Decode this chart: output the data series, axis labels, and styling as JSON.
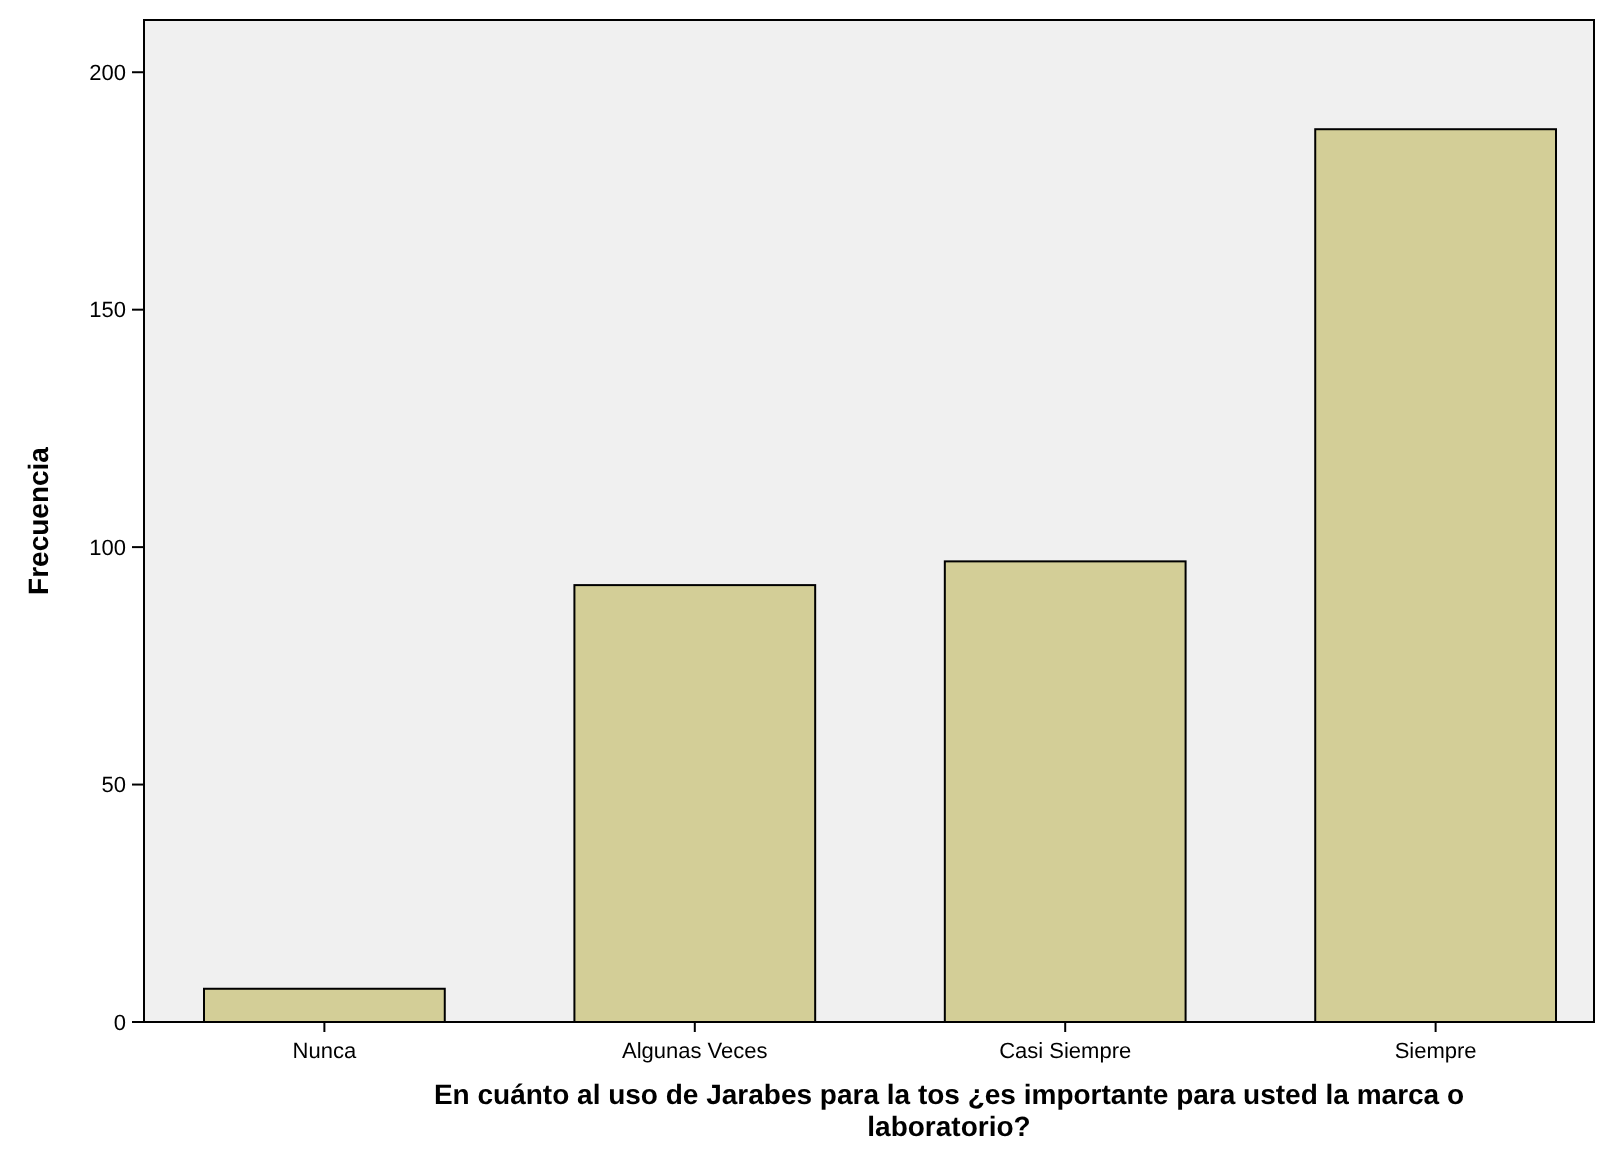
{
  "chart_data": {
    "type": "bar",
    "xlabel": "En cuánto al uso de Jarabes para la tos ¿es importante para usted la marca o laboratorio?",
    "ylabel": "Frecuencia",
    "categories": [
      "Nunca",
      "Algunas Veces",
      "Casi Siempre",
      "Siempre"
    ],
    "values": [
      7,
      92,
      97,
      188
    ],
    "color": "#d3ce97",
    "ylim": [
      0,
      211
    ],
    "yticks": [
      0,
      50,
      100,
      150,
      200
    ],
    "grid": false
  }
}
